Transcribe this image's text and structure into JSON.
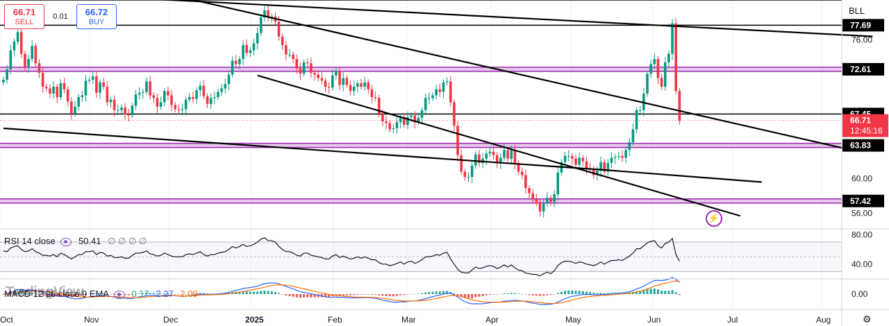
{
  "symbol": "BLL",
  "trade": {
    "sell_price": "66.71",
    "sell_label": "SELL",
    "spread": "0.01",
    "buy_price": "66.72",
    "buy_label": "BUY"
  },
  "watermark": "TradingView",
  "colors": {
    "up": "#089981",
    "down": "#f23645",
    "zone": "#9c27b0",
    "rsi": "#131722",
    "macd": "#2962ff",
    "signal": "#ff6d00"
  },
  "chart_data": [
    {
      "type": "candlestick",
      "title": "",
      "x_ticks": [
        "Oct",
        "Nov",
        "Dec",
        "2025",
        "Feb",
        "Mar",
        "Apr",
        "May",
        "Jun",
        "Jul",
        "Aug"
      ],
      "y_ticks": [
        56.0,
        60.0,
        76.0
      ],
      "ylim": [
        54.2,
        80.6
      ],
      "price_labels": [
        {
          "value": 77.69,
          "text": "77.69"
        },
        {
          "value": 72.61,
          "text": "72.61"
        },
        {
          "value": 67.45,
          "text": "67.45"
        },
        {
          "value": 63.83,
          "text": "63.83"
        },
        {
          "value": 57.42,
          "text": "57.42"
        }
      ],
      "current_price": {
        "value": 66.71,
        "text": "66.71",
        "countdown": "12:45:16"
      },
      "horizontal_zones": [
        72.61,
        63.83,
        57.42
      ],
      "horizontal_lines": [
        80.6,
        77.69,
        67.45
      ],
      "trendlines": [
        {
          "from": [
            0,
            81.6
          ],
          "to": [
            243,
            76.4
          ]
        },
        {
          "from": [
            50,
            80.9
          ],
          "to": [
            237,
            63.3
          ]
        },
        {
          "from": [
            71,
            71.9
          ],
          "to": [
            206,
            55.7
          ]
        },
        {
          "from": [
            0,
            65.8
          ],
          "to": [
            168,
            61.0
          ]
        },
        {
          "from": [
            168,
            61.0
          ],
          "to": [
            212,
            59.6
          ]
        }
      ],
      "closes": [
        71.4,
        72.6,
        74.8,
        75.8,
        76.9,
        74.4,
        72.9,
        73.8,
        75.3,
        73.3,
        72.2,
        70.6,
        70.4,
        69.8,
        70.6,
        69.4,
        71.0,
        70.3,
        68.9,
        67.5,
        68.3,
        69.4,
        69.6,
        71.3,
        71.4,
        71.8,
        69.9,
        71.1,
        70.6,
        68.8,
        69.1,
        67.9,
        67.9,
        68.2,
        67.4,
        67.3,
        68.4,
        69.7,
        69.9,
        70.0,
        71.2,
        69.6,
        69.3,
        68.3,
        68.8,
        70.1,
        69.6,
        68.5,
        68.0,
        67.9,
        68.0,
        69.1,
        69.4,
        69.2,
        70.2,
        70.7,
        69.5,
        68.6,
        69.3,
        69.4,
        70.0,
        70.4,
        70.9,
        72.0,
        73.6,
        73.2,
        73.8,
        75.4,
        74.5,
        74.8,
        75.6,
        76.8,
        78.6,
        79.4,
        78.7,
        78.7,
        78.1,
        76.4,
        75.4,
        74.3,
        74.3,
        73.8,
        72.7,
        72.1,
        73.4,
        73.3,
        72.2,
        72.0,
        71.6,
        71.3,
        70.6,
        70.5,
        71.9,
        72.4,
        70.8,
        71.6,
        70.8,
        70.1,
        70.6,
        71.0,
        70.6,
        71.1,
        70.3,
        69.4,
        69.3,
        67.5,
        66.6,
        66.4,
        65.7,
        65.8,
        66.5,
        67.1,
        66.2,
        67.1,
        67.3,
        66.5,
        67.0,
        67.9,
        69.3,
        69.3,
        69.6,
        70.3,
        70.0,
        71.1,
        71.2,
        68.8,
        66.1,
        62.7,
        60.8,
        60.2,
        60.2,
        61.5,
        62.8,
        61.8,
        62.3,
        62.9,
        63.1,
        62.7,
        61.8,
        62.4,
        63.3,
        62.3,
        63.3,
        61.8,
        60.8,
        60.4,
        58.9,
        58.3,
        57.6,
        57.3,
        56.2,
        57.1,
        57.8,
        57.3,
        58.2,
        60.7,
        61.9,
        62.6,
        62.6,
        62.3,
        61.6,
        62.4,
        62.0,
        61.2,
        61.1,
        60.4,
        60.9,
        61.9,
        60.8,
        61.8,
        62.4,
        62.5,
        62.6,
        62.4,
        63.3,
        64.2,
        65.7,
        67.9,
        67.9,
        69.8,
        72.1,
        73.2,
        73.8,
        71.6,
        70.6,
        73.4,
        74.4,
        77.9,
        70.1,
        66.7
      ],
      "rsi_panel": {
        "label": "RSI 14 close",
        "value": "50.41",
        "placeholders": "∅ ∅ ∅ ∅",
        "y_ticks": [
          80.0,
          40.0
        ],
        "ylim": [
          20,
          88
        ],
        "values": [
          58,
          57,
          62,
          64,
          65,
          60,
          57,
          58,
          61,
          57,
          55,
          52,
          52,
          51,
          53,
          50,
          55,
          53,
          50,
          47,
          50,
          53,
          53,
          57,
          57,
          58,
          53,
          56,
          55,
          51,
          52,
          49,
          49,
          50,
          48,
          48,
          52,
          55,
          55,
          56,
          58,
          54,
          53,
          51,
          52,
          55,
          53,
          51,
          50,
          50,
          50,
          53,
          54,
          53,
          55,
          57,
          53,
          51,
          53,
          53,
          55,
          56,
          57,
          60,
          64,
          62,
          64,
          67,
          64,
          65,
          67,
          70,
          74,
          76,
          72,
          72,
          70,
          64,
          60,
          57,
          57,
          55,
          52,
          51,
          55,
          55,
          52,
          51,
          50,
          49,
          47,
          47,
          51,
          53,
          49,
          51,
          49,
          47,
          48,
          50,
          48,
          50,
          48,
          46,
          46,
          42,
          40,
          40,
          38,
          39,
          41,
          43,
          40,
          43,
          44,
          41,
          43,
          46,
          50,
          50,
          51,
          53,
          52,
          55,
          56,
          47,
          40,
          33,
          29,
          28,
          28,
          32,
          36,
          34,
          35,
          37,
          38,
          37,
          34,
          36,
          39,
          36,
          39,
          35,
          32,
          31,
          28,
          27,
          26,
          26,
          24,
          27,
          29,
          27,
          31,
          38,
          42,
          44,
          44,
          43,
          41,
          43,
          42,
          40,
          39,
          38,
          40,
          43,
          40,
          43,
          45,
          45,
          46,
          45,
          48,
          51,
          55,
          61,
          61,
          65,
          69,
          71,
          72,
          65,
          62,
          68,
          70,
          75,
          53,
          44
        ],
        "zone": [
          30,
          70
        ]
      },
      "macd_panel": {
        "label": "MACD 12 26 close 9 EMA",
        "hist": "0.17",
        "macd": "2.27",
        "signal": "2.09",
        "y_ticks": [
          0.0
        ],
        "ylim": [
          -3.2,
          3.2
        ]
      }
    }
  ]
}
